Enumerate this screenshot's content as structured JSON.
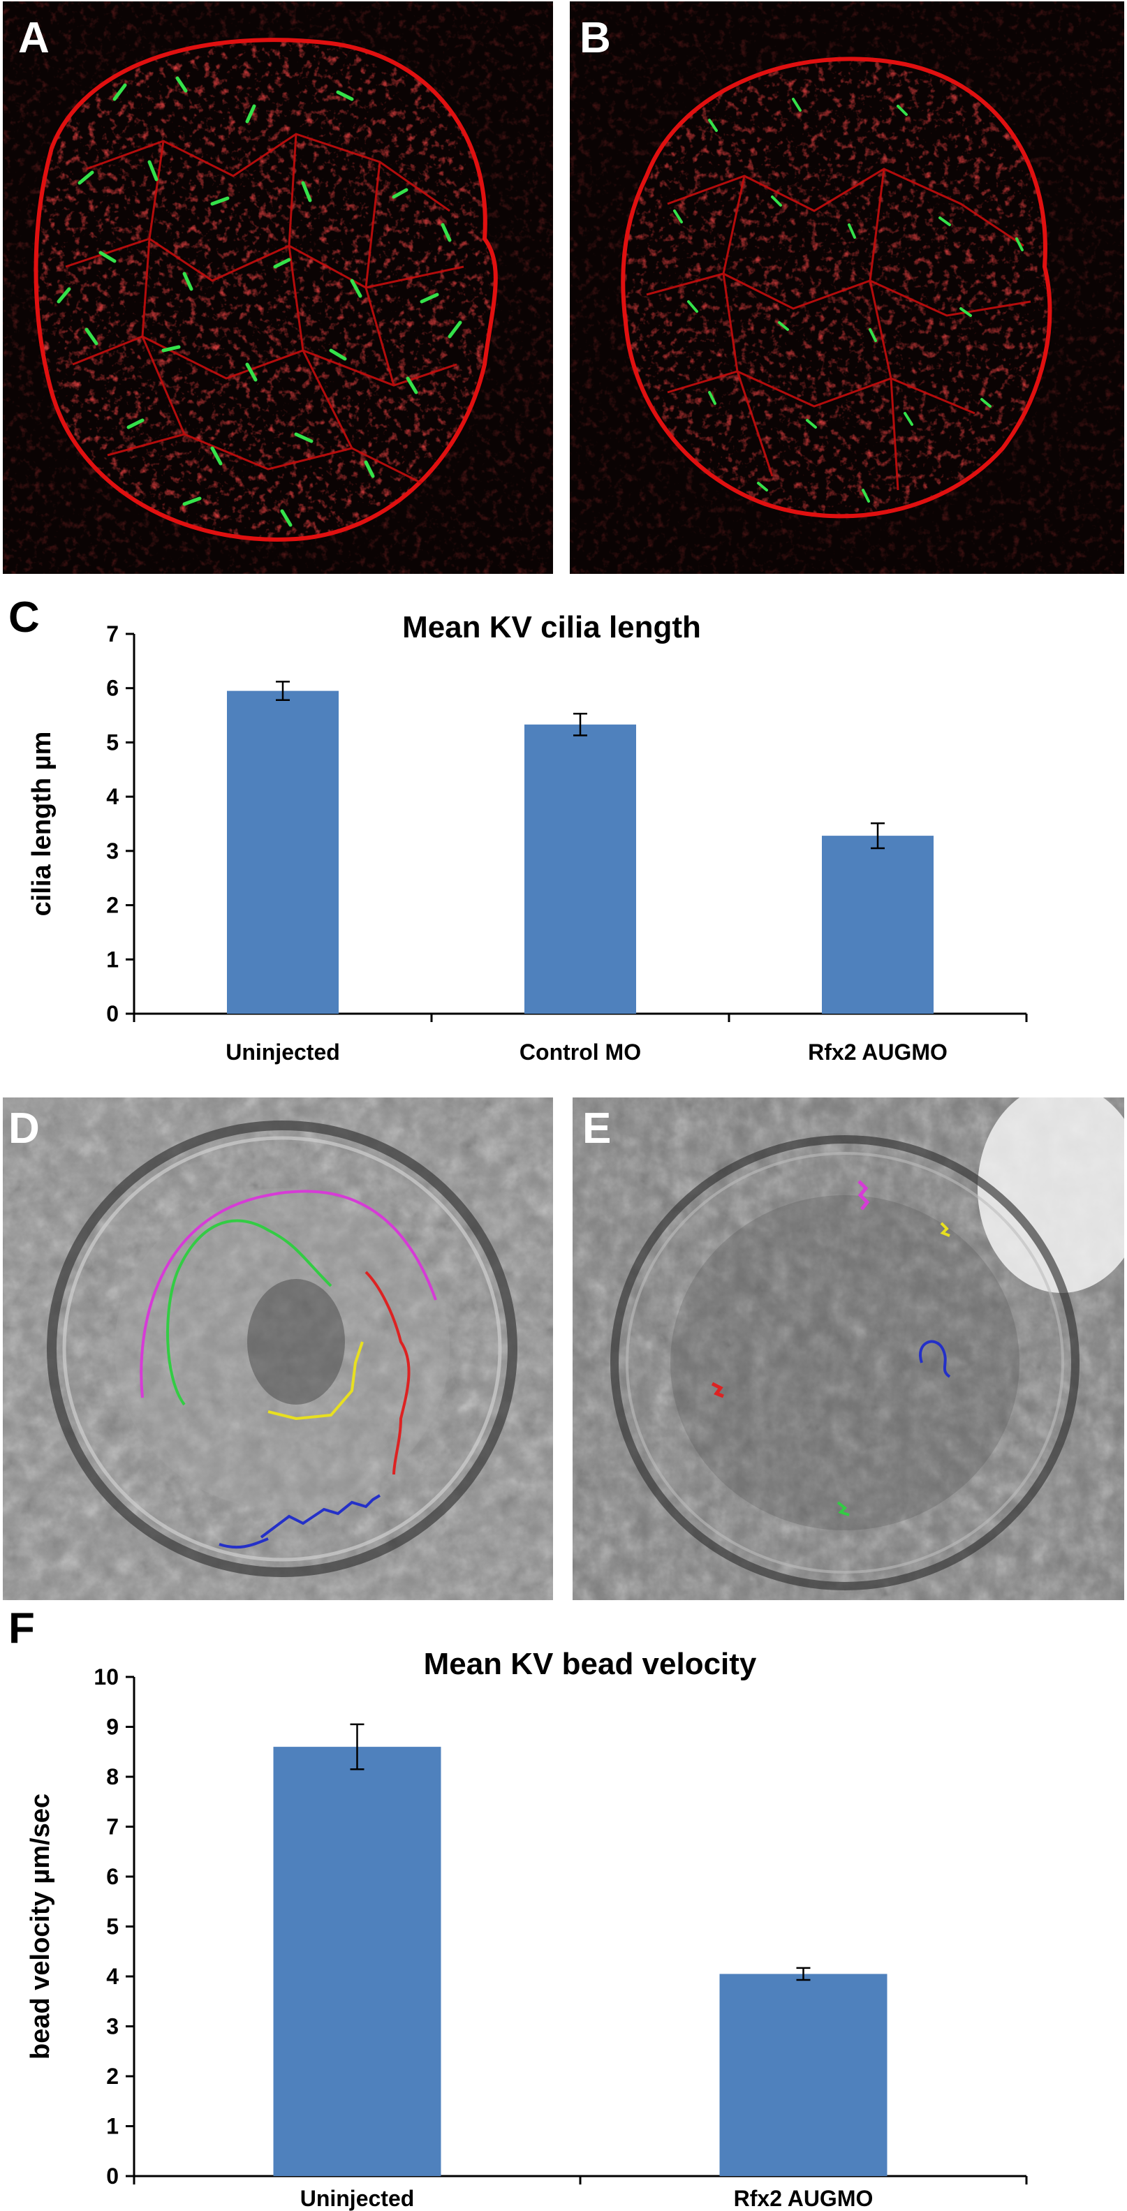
{
  "panels": {
    "a": {
      "letter": "A"
    },
    "b": {
      "letter": "B"
    },
    "c": {
      "letter": "C"
    },
    "d": {
      "letter": "D"
    },
    "e": {
      "letter": "E"
    },
    "f": {
      "letter": "F"
    }
  },
  "colors": {
    "bar": "#4f81bd",
    "membrane": "#e01010",
    "cilia": "#34e24a",
    "letter_dark": "#000000",
    "letter_light": "#ffffff",
    "track_magenta": "#d63bd6",
    "track_green": "#33cc44",
    "track_red": "#dd2222",
    "track_yellow": "#e8e020",
    "track_blue": "#2430c8"
  },
  "chart_data": [
    {
      "type": "bar",
      "title": "Mean KV cilia length",
      "ylabel": "cilia length µm",
      "xlabel": "",
      "categories": [
        "Uninjected",
        "Control MO",
        "Rfx2 AUGMO"
      ],
      "values": [
        5.95,
        5.33,
        3.28
      ],
      "errors": [
        0.17,
        0.2,
        0.23
      ],
      "ylim": [
        0,
        7
      ],
      "yticks": [
        "0",
        "1",
        "2",
        "3",
        "4",
        "5",
        "6",
        "7"
      ]
    },
    {
      "type": "bar",
      "title": "Mean KV bead velocity",
      "ylabel": "bead velocity µm/sec",
      "xlabel": "",
      "categories": [
        "Uninjected",
        "Rfx2 AUGMO"
      ],
      "values": [
        8.6,
        4.05
      ],
      "errors": [
        0.45,
        0.12
      ],
      "ylim": [
        0,
        10
      ],
      "yticks": [
        "0",
        "1",
        "2",
        "3",
        "4",
        "5",
        "6",
        "7",
        "8",
        "9",
        "10"
      ]
    }
  ]
}
